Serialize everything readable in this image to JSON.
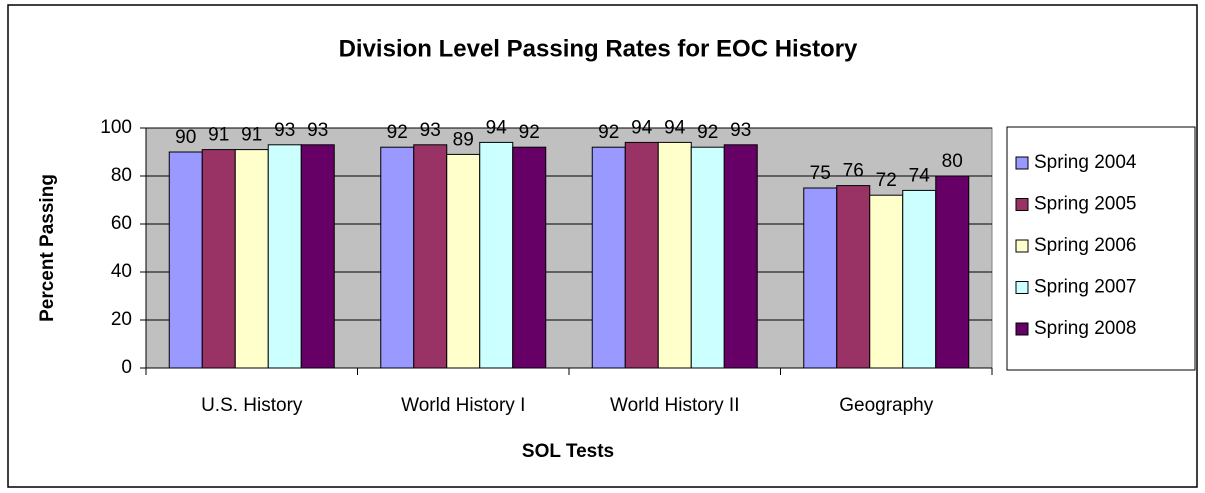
{
  "chart_data": {
    "type": "bar",
    "title": "Division Level Passing Rates for EOC History",
    "x_label": "SOL Tests",
    "y_label": "Percent Passing",
    "categories": [
      "U.S. History",
      "World History I",
      "World History II",
      "Geography"
    ],
    "series": [
      {
        "name": "Spring 2004",
        "color": "#9999FF",
        "values": [
          90,
          92,
          92,
          75
        ]
      },
      {
        "name": "Spring 2005",
        "color": "#993366",
        "values": [
          91,
          93,
          94,
          76
        ]
      },
      {
        "name": "Spring 2006",
        "color": "#FFFFCC",
        "values": [
          91,
          89,
          94,
          72
        ]
      },
      {
        "name": "Spring 2007",
        "color": "#CCFFFF",
        "values": [
          93,
          94,
          92,
          74
        ]
      },
      {
        "name": "Spring 2008",
        "color": "#660066",
        "values": [
          93,
          92,
          93,
          80
        ]
      }
    ],
    "ylim": [
      0,
      100
    ],
    "yticks": [
      0,
      20,
      40,
      60,
      80,
      100
    ],
    "grid": true,
    "legend": "right",
    "plot_background": "#C0C0C0"
  }
}
